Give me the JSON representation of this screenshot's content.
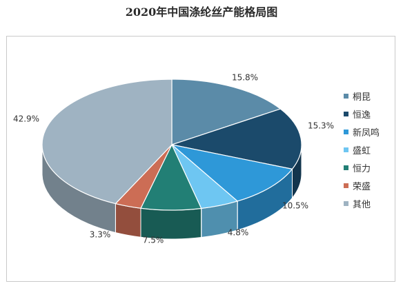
{
  "title": "2020年中国涤纶丝产能格局图",
  "chart_data": {
    "type": "pie",
    "style": "3d",
    "legend_position": "right",
    "series": [
      {
        "name": "桐昆",
        "value": 15.8,
        "label": "15.8%",
        "color": "#5b8ba8"
      },
      {
        "name": "恒逸",
        "value": 15.3,
        "label": "15.3%",
        "color": "#1b4a6b"
      },
      {
        "name": "新凤鸣",
        "value": 10.5,
        "label": "10.5%",
        "color": "#2e98d8"
      },
      {
        "name": "盛虹",
        "value": 4.8,
        "label": "4.8%",
        "color": "#6ec6f2"
      },
      {
        "name": "恒力",
        "value": 7.5,
        "label": "7.5%",
        "color": "#227f75"
      },
      {
        "name": "荣盛",
        "value": 3.3,
        "label": "3.3%",
        "color": "#cc6d55"
      },
      {
        "name": "其他",
        "value": 42.9,
        "label": "42.9%",
        "color": "#9fb3c2"
      }
    ]
  }
}
